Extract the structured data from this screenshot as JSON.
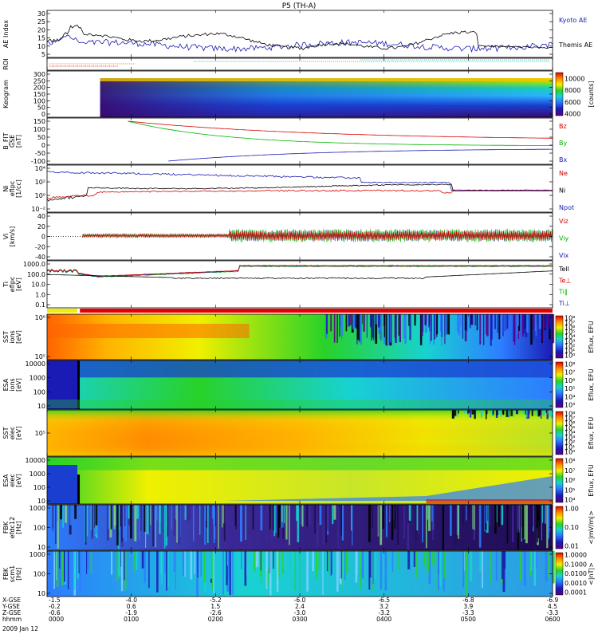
{
  "title": "P5 (TH-A)",
  "colors": {
    "kyoto": "#1a1ab4",
    "themis": "#000000",
    "red": "#d40000",
    "green": "#00b400",
    "blue": "#1a1ab4",
    "black": "#000000"
  },
  "chart_data": [
    {
      "panel": "ae",
      "type": "line",
      "ylabel": "AE Index",
      "yticks": [
        "30",
        "25",
        "20",
        "15",
        "10",
        "5"
      ],
      "series": [
        {
          "name": "Kyoto AE",
          "color": "blue"
        },
        {
          "name": "Themis AE",
          "color": "black"
        }
      ]
    },
    {
      "panel": "roi",
      "type": "bar",
      "ylabel": "ROI"
    },
    {
      "panel": "keogram",
      "type": "heatmap",
      "ylabel": "Keogram",
      "yticks": [
        "300",
        "250",
        "200",
        "150",
        "100",
        "50",
        "0"
      ],
      "colorbar": {
        "ticks": [
          "10000",
          "8000",
          "6000",
          "4000"
        ],
        "label": "[counts]"
      }
    },
    {
      "panel": "bfit",
      "type": "line",
      "ylabel": [
        "B_FIT",
        "GSE",
        "[nT]"
      ],
      "yticks": [
        "150",
        "100",
        "50",
        "0",
        "-50",
        "-100"
      ],
      "series": [
        {
          "name": "Bz",
          "color": "red"
        },
        {
          "name": "By",
          "color": "green"
        },
        {
          "name": "Bx",
          "color": "blue"
        }
      ]
    },
    {
      "panel": "density",
      "type": "line",
      "ylabel": [
        "Ni",
        "eflpc",
        "[1/cc]"
      ],
      "yticks": [
        "10⁴",
        "10²",
        "10⁰",
        "10⁻²"
      ],
      "series": [
        {
          "name": "Ne",
          "color": "red"
        },
        {
          "name": "Ni",
          "color": "black"
        },
        {
          "name": "Npot",
          "color": "blue"
        }
      ]
    },
    {
      "panel": "velocity",
      "type": "line",
      "ylabel": [
        "Vi",
        "[km/s]"
      ],
      "yticks": [
        "40",
        "20",
        "0",
        "-20",
        "-40"
      ],
      "series": [
        {
          "name": "Viz",
          "color": "red"
        },
        {
          "name": "Viy",
          "color": "green"
        },
        {
          "name": "Vix",
          "color": "blue"
        }
      ]
    },
    {
      "panel": "temperature",
      "type": "line",
      "ylabel": [
        "Ti",
        "eflpc",
        "[eV]"
      ],
      "yticks": [
        "1000.0",
        "100.0",
        "10.0",
        "1.0",
        "0.1"
      ],
      "series": [
        {
          "name": "Tell",
          "color": "black"
        },
        {
          "name": "Te⊥",
          "color": "red"
        },
        {
          "name": "Ti∥",
          "color": "green"
        },
        {
          "name": "Ti⊥",
          "color": "blue"
        }
      ]
    },
    {
      "panel": "sst_i",
      "type": "heatmap",
      "ylabel": [
        "SST",
        "ions",
        "[eV]"
      ],
      "yticks": [
        "10⁶",
        "10⁵"
      ],
      "colorbar": {
        "ticks": [
          "10⁸",
          "10⁷",
          "10⁶",
          "10⁵",
          "10⁴",
          "10³",
          "10²",
          "10¹",
          "10⁰"
        ],
        "label": "Eflux, EFU"
      }
    },
    {
      "panel": "esa_i",
      "type": "heatmap",
      "ylabel": [
        "ESA",
        "ions",
        "[eV]"
      ],
      "yticks": [
        "10000",
        "1000",
        "100",
        "10"
      ],
      "colorbar": {
        "ticks": [
          "10⁸",
          "10⁷",
          "10⁶",
          "10⁵",
          "10⁴",
          "10³"
        ],
        "label": "Eflux, EFU"
      }
    },
    {
      "panel": "sst_e",
      "type": "heatmap",
      "ylabel": [
        "SST",
        "elec",
        "[eV]"
      ],
      "yticks": [
        "10⁵"
      ],
      "colorbar": {
        "ticks": [
          "10⁸",
          "10⁷",
          "10⁶",
          "10⁵",
          "10⁴",
          "10³",
          "10²",
          "10¹",
          "10⁰"
        ],
        "label": "Eflux, EFU"
      }
    },
    {
      "panel": "esa_e",
      "type": "heatmap",
      "ylabel": [
        "ESA",
        "elec",
        "[eV]"
      ],
      "yticks": [
        "10000",
        "1000",
        "100",
        "10"
      ],
      "colorbar": {
        "ticks": [
          "10⁸",
          "10⁷",
          "10⁶",
          "10⁵",
          "10⁴"
        ],
        "label": "Eflux, EFU"
      }
    },
    {
      "panel": "fbk_e",
      "type": "heatmap",
      "ylabel": [
        "FBK",
        "efdc12",
        "[Hz]"
      ],
      "yticks": [
        "1000",
        "100",
        "10"
      ],
      "colorbar": {
        "ticks": [
          "1.00",
          "0.10",
          "0.01"
        ],
        "label": "<|mV/m|>"
      }
    },
    {
      "panel": "fbk_b",
      "type": "heatmap",
      "ylabel": [
        "FBK",
        "scm1",
        "[Hz]"
      ],
      "yticks": [
        "1000",
        "100",
        "10"
      ],
      "colorbar": {
        "ticks": [
          "1.0000",
          "0.1000",
          "0.0100",
          "0.0010",
          "0.0001"
        ],
        "label": "<|nT|>"
      }
    }
  ],
  "ephemeris": {
    "rows": [
      "X-GSE",
      "Y-GSE",
      "Z-GSE",
      "hhmm"
    ],
    "date": "2009 Jan 12",
    "columns": [
      {
        "x": "-1.5",
        "y": "-0.2",
        "z": "-0.6",
        "t": "0000"
      },
      {
        "x": "-4.0",
        "y": "0.6",
        "z": "-1.9",
        "t": "0100"
      },
      {
        "x": "-5.2",
        "y": "1.5",
        "z": "-2.6",
        "t": "0200"
      },
      {
        "x": "-6.0",
        "y": "2.4",
        "z": "-3.0",
        "t": "0300"
      },
      {
        "x": "-6.5",
        "y": "3.2",
        "z": "-3.2",
        "t": "0400"
      },
      {
        "x": "-6.8",
        "y": "3.9",
        "z": "-3.3",
        "t": "0500"
      },
      {
        "x": "-6.9",
        "y": "4.5",
        "z": "-3.3",
        "t": "0600"
      }
    ]
  }
}
